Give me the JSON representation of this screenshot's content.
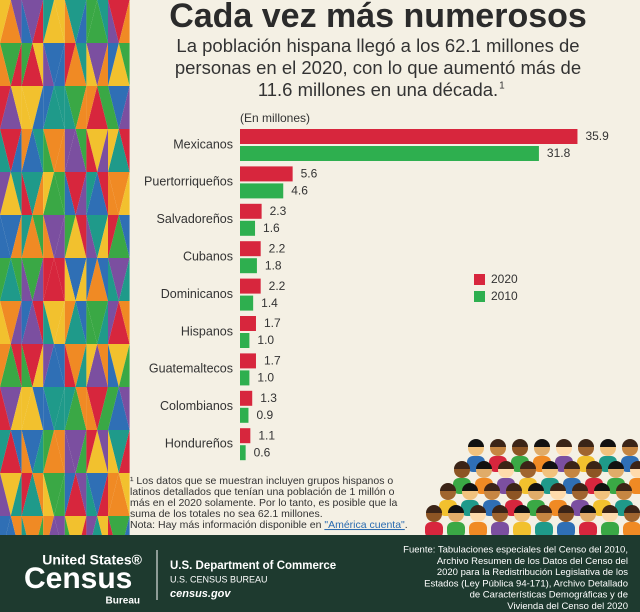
{
  "chart_data": {
    "type": "bar",
    "orientation": "horizontal",
    "title": "Cada vez más numerosos",
    "subtitle_lines": [
      "La población hispana llegó a los 62.1 millones de",
      "personas en el 2020, con lo que aumentó más de",
      "11.6 millones en una década."
    ],
    "subtitle_note": "1",
    "unit_label": "(En millones)",
    "categories": [
      "Mexicanos",
      "Puertorriqueños",
      "Salvadoreños",
      "Cubanos",
      "Dominicanos",
      "Hispanos",
      "Guatemaltecos",
      "Colombianos",
      "Hondureños"
    ],
    "series": [
      {
        "name": "2020",
        "color": "#d7263d",
        "values": [
          35.9,
          5.6,
          2.3,
          2.2,
          2.2,
          1.7,
          1.7,
          1.3,
          1.1
        ],
        "value_labels": [
          "35.9",
          "5.6",
          "2.3",
          "2.2",
          "2.2",
          "1.7",
          "1.7",
          "1.3",
          "1.1"
        ]
      },
      {
        "name": "2010",
        "color": "#2eaf4f",
        "values": [
          31.8,
          4.6,
          1.6,
          1.8,
          1.4,
          1.0,
          1.0,
          0.9,
          0.6
        ],
        "value_labels": [
          "31.8",
          "4.6",
          "1.6",
          "1.8",
          "1.4",
          "1.0",
          "1.0",
          "0.9",
          "0.6"
        ]
      }
    ],
    "legend_position": "right",
    "footnote_lines": [
      "¹ Los datos que se muestran incluyen grupos hispanos o",
      "latinos detallados que tenían una población de 1 millón o",
      "más en el 2020 solamente. Por lo tanto, es posible que la",
      "suma de los totales no sea 62.1 millones."
    ],
    "note": "Nota: Hay más información disponible en ",
    "note_link": "\"América cuenta\"",
    "note_end": "."
  },
  "footer": {
    "logo_top": "United States®",
    "logo_main": "Census",
    "logo_bottom": "Bureau",
    "department": "U.S. Department of Commerce",
    "bureau": "U.S. CENSUS BUREAU",
    "website": "census.gov",
    "source_lines": [
      "Fuente: Tabulaciones especiales del Censo del 2010,",
      "Archivo Resumen de los Datos del Censo del",
      "2020 para la Redistribución Legislativa de los",
      "Estados (Ley Pública 94-171), Archivo Detallado",
      "de Características Demográficas y de",
      "Vivienda del Censo del 2020"
    ]
  }
}
